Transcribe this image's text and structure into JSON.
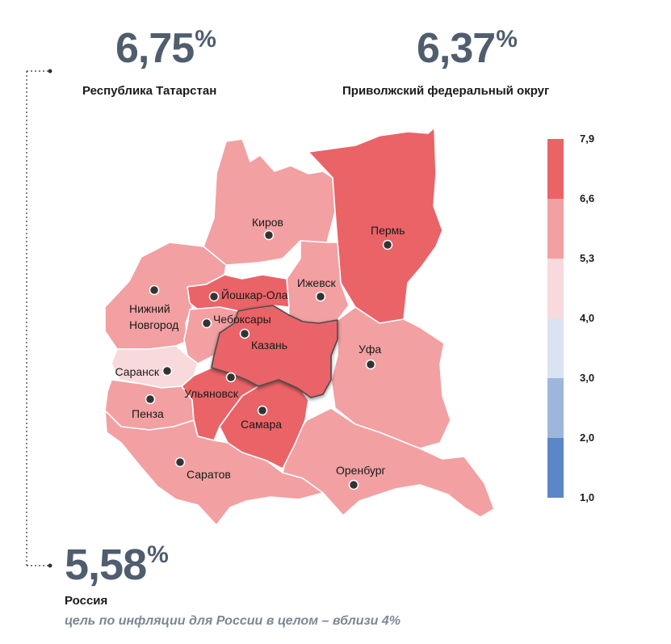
{
  "tatarstan": {
    "value": "6,75",
    "unit": "%",
    "label": "Республика Татарстан"
  },
  "pfo": {
    "value": "6,37",
    "unit": "%",
    "label": "Приволжский федеральный округ"
  },
  "russia": {
    "value": "5,58",
    "unit": "%",
    "label": "Россия",
    "note": "цель по инфляции для России в целом – вблизи 4%"
  },
  "legend": {
    "ticks": [
      "7,9",
      "6,6",
      "5,3",
      "4,0",
      "3,0",
      "2,0",
      "1,0"
    ],
    "colors": [
      "#ea6367",
      "#f2a0a2",
      "#f8d9dc",
      "#d9e3f1",
      "#9fb6dc",
      "#5c87c6"
    ]
  },
  "map": {
    "colors": {
      "high": "#ea6367",
      "mid": "#f2a0a2",
      "low": "#f8d9dc",
      "border": "#ffffff"
    },
    "cities": [
      {
        "name": "Киров"
      },
      {
        "name": "Пермь"
      },
      {
        "name": "Ижевск"
      },
      {
        "name": "Йошкар-Ола"
      },
      {
        "name": "Нижний\nНовгород"
      },
      {
        "name": "Чебоксары"
      },
      {
        "name": "Казань"
      },
      {
        "name": "Уфа"
      },
      {
        "name": "Саранск"
      },
      {
        "name": "Ульяновск"
      },
      {
        "name": "Пенза"
      },
      {
        "name": "Самара"
      },
      {
        "name": "Саратов"
      },
      {
        "name": "Оренбург"
      }
    ]
  }
}
